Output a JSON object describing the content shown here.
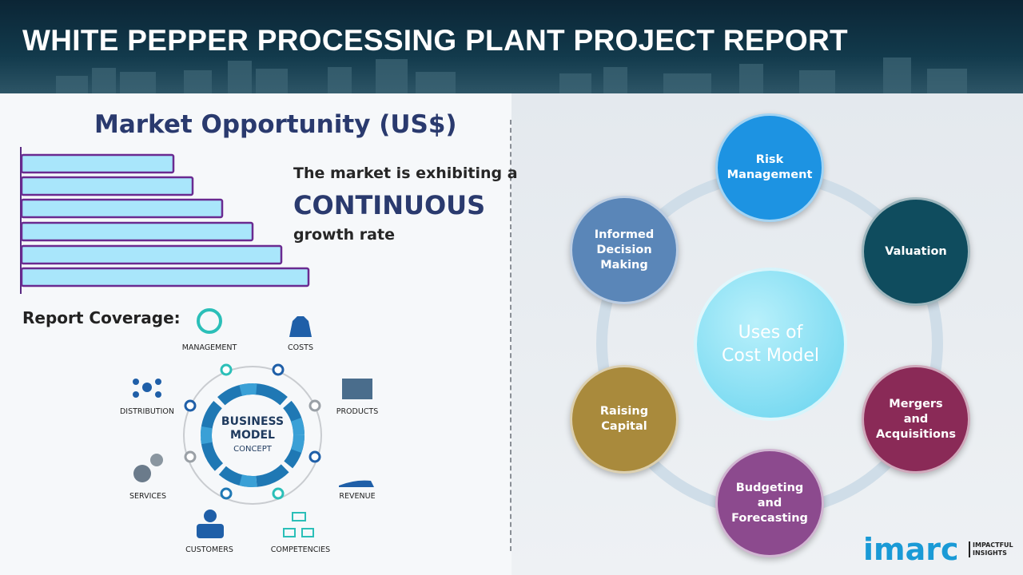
{
  "header": {
    "title": "WHITE PEPPER PROCESSING PLANT PROJECT REPORT"
  },
  "market": {
    "title": "Market Opportunity (US$)",
    "line1": "The market is exhibiting a",
    "highlight": "CONTINUOUS",
    "line2": "growth rate"
  },
  "coverage": {
    "title": "Report Coverage:",
    "center": [
      "BUSINESS",
      "MODEL",
      "CONCEPT"
    ],
    "items": [
      "MANAGEMENT",
      "COSTS",
      "DISTRIBUTION",
      "PRODUCTS",
      "SERVICES",
      "REVENUE",
      "CUSTOMERS",
      "COMPETENCIES"
    ]
  },
  "uses": {
    "center": "Uses of Cost Model",
    "nodes": [
      "Risk Management",
      "Valuation",
      "Mergers and Acquisitions",
      "Budgeting and Forecasting",
      "Raising Capital",
      "Informed Decision Making"
    ]
  },
  "logo": {
    "name": "imarc",
    "tagline": [
      "IMPACTFUL",
      "INSIGHTS"
    ]
  }
}
